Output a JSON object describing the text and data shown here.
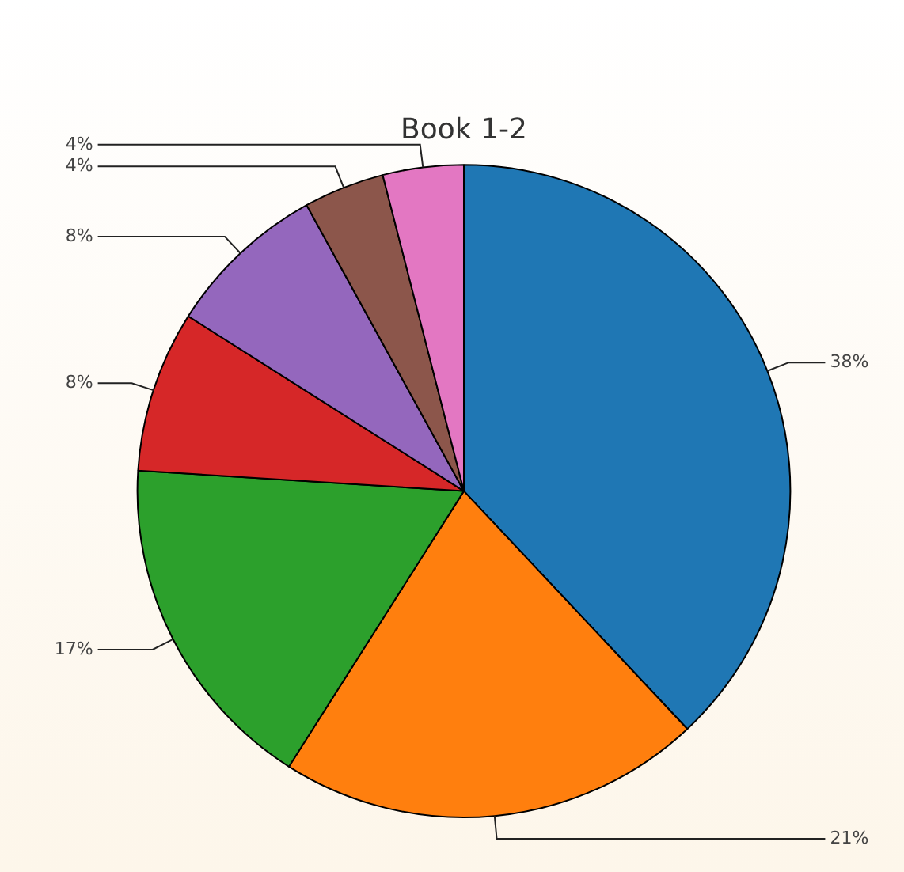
{
  "chart_data": {
    "type": "pie",
    "title": "Book 1-2",
    "categories": [
      null,
      null,
      null,
      null,
      null,
      null,
      null
    ],
    "values": [
      38,
      21,
      17,
      8,
      8,
      4,
      4
    ],
    "colors": [
      "#1f77b4",
      "#ff7f0e",
      "#2ca02c",
      "#d62728",
      "#9467bd",
      "#8c564b",
      "#e377c2"
    ],
    "value_labels": [
      "38%",
      "21%",
      "17%",
      "8%",
      "8%",
      "4%",
      "4%"
    ],
    "legend": false
  }
}
